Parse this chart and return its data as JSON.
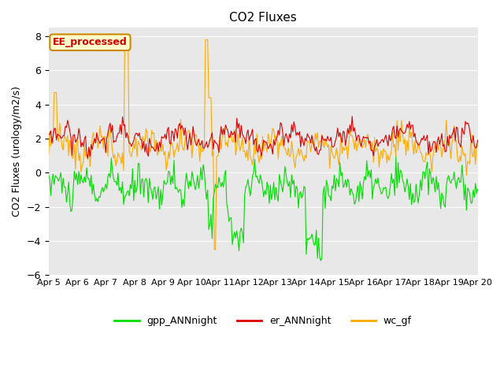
{
  "title": "CO2 Fluxes",
  "ylabel": "CO2 Fluxes (urology/m2/s)",
  "ylim": [
    -6,
    8.5
  ],
  "yticks": [
    -6,
    -4,
    -2,
    0,
    2,
    4,
    6,
    8
  ],
  "bg_color": "#e8e8e8",
  "annotation_text": "EE_processed",
  "annotation_color": "#cc0000",
  "annotation_bg": "#ffffcc",
  "annotation_border": "#cc8800",
  "line_colors": {
    "gpp_ANNnight": "#00dd00",
    "er_ANNnight": "#dd0000",
    "wc_gf": "#ffaa00"
  },
  "legend_labels": [
    "gpp_ANNnight",
    "er_ANNnight",
    "wc_gf"
  ],
  "n_points": 384,
  "xlabel_dates": [
    "Apr 5",
    "Apr 6",
    "Apr 7",
    "Apr 8",
    "Apr 9",
    "Apr 10",
    "Apr 11",
    "Apr 12",
    "Apr 13",
    "Apr 14",
    "Apr 15",
    "Apr 16",
    "Apr 17",
    "Apr 18",
    "Apr 19",
    "Apr 20"
  ],
  "xtick_positions": [
    0,
    1,
    2,
    3,
    4,
    5,
    6,
    7,
    8,
    9,
    10,
    11,
    12,
    13,
    14,
    15
  ]
}
